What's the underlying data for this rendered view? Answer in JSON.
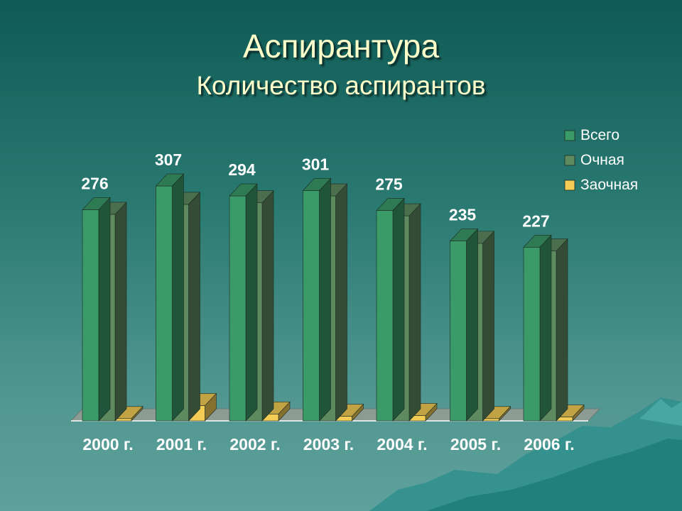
{
  "slide": {
    "title": "Аспирантура",
    "subtitle": "Количество аспирантов"
  },
  "chart_data": {
    "type": "bar",
    "categories": [
      "2000 г.",
      "2001 г.",
      "2002 г.",
      "2003 г.",
      "2004 г.",
      "2005 г.",
      "2006 г."
    ],
    "series": [
      {
        "name": "Всего",
        "values": [
          276,
          307,
          294,
          301,
          275,
          235,
          227
        ],
        "color": "#3a9a68"
      },
      {
        "name": "Очная",
        "values": [
          270,
          283,
          285,
          294,
          268,
          232,
          222
        ],
        "color": "#5e8a60"
      },
      {
        "name": "Заочная",
        "values": [
          3,
          20,
          9,
          6,
          7,
          3,
          5
        ],
        "color": "#f2cc55"
      }
    ],
    "data_labels": {
      "series": "Всего",
      "values": [
        "276",
        "307",
        "294",
        "301",
        "275",
        "235",
        "227"
      ]
    },
    "ylim": [
      0,
      320
    ],
    "grid": false,
    "legend": "top-right",
    "title": "",
    "xlabel": "",
    "ylabel": ""
  }
}
